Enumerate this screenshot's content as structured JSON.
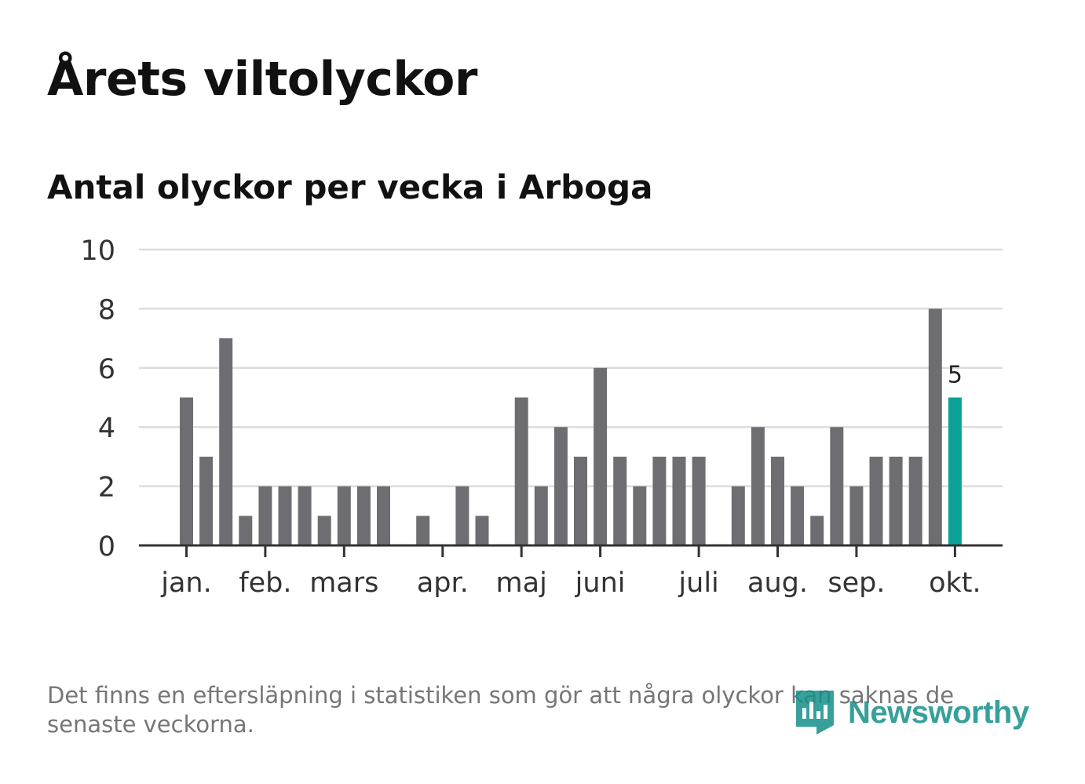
{
  "header": {
    "title": "Årets viltolyckor",
    "subtitle": "Antal olyckor per vecka i Arboga"
  },
  "footnote": "Det finns en eftersläpning i statistiken som gör att några olyckor kan saknas de senaste veckorna.",
  "brand": {
    "name": "Newsworthy",
    "icon": "newsworthy-logo-icon"
  },
  "colors": {
    "bar": "#6e6d72",
    "highlight": "#0ba196",
    "grid": "#dddddd",
    "axis": "#333333",
    "brand": "#15908a"
  },
  "chart_data": {
    "type": "bar",
    "title": "Antal olyckor per vecka i Arboga",
    "xlabel": "",
    "ylabel": "",
    "ylim": [
      0,
      10
    ],
    "yticks": [
      0,
      2,
      4,
      6,
      8,
      10
    ],
    "grid": true,
    "weeks": [
      1,
      2,
      3,
      4,
      5,
      6,
      7,
      8,
      9,
      10,
      11,
      12,
      13,
      14,
      15,
      16,
      17,
      18,
      19,
      20,
      21,
      22,
      23,
      24,
      25,
      26,
      27,
      28,
      29,
      30,
      31,
      32,
      33,
      34,
      35,
      36,
      37,
      38,
      39,
      40
    ],
    "values": [
      5,
      3,
      7,
      1,
      2,
      2,
      2,
      1,
      2,
      2,
      2,
      0,
      1,
      0,
      2,
      1,
      0,
      5,
      2,
      4,
      3,
      6,
      3,
      2,
      3,
      3,
      3,
      0,
      2,
      4,
      3,
      2,
      1,
      4,
      2,
      3,
      3,
      3,
      8,
      5
    ],
    "highlight_index": 39,
    "highlight_label": "5",
    "month_ticks": [
      {
        "label": "jan.",
        "week": 1
      },
      {
        "label": "feb.",
        "week": 5
      },
      {
        "label": "mars",
        "week": 9
      },
      {
        "label": "apr.",
        "week": 14
      },
      {
        "label": "maj",
        "week": 18
      },
      {
        "label": "juni",
        "week": 22
      },
      {
        "label": "juli",
        "week": 27
      },
      {
        "label": "aug.",
        "week": 31
      },
      {
        "label": "sep.",
        "week": 35
      },
      {
        "label": "okt.",
        "week": 40
      }
    ]
  }
}
